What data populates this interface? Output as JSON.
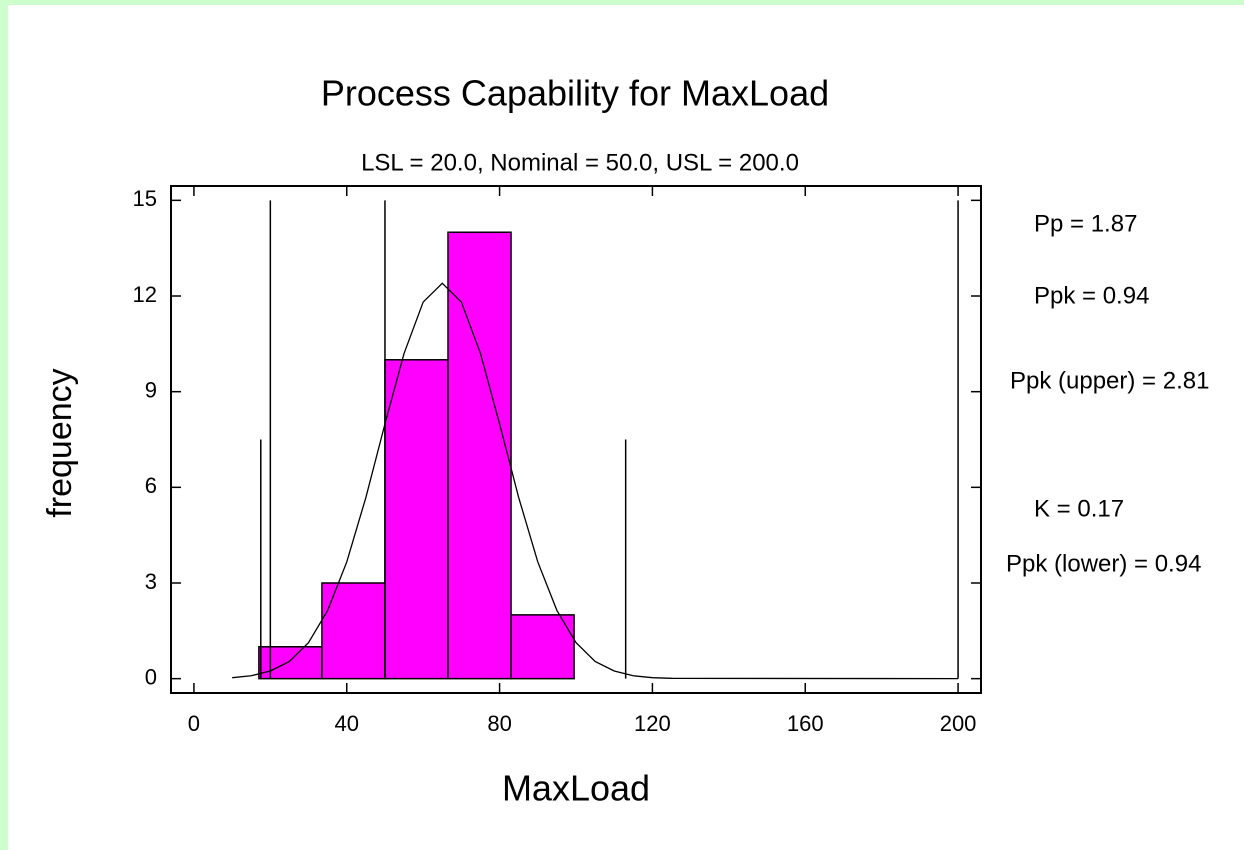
{
  "chart_data": {
    "type": "histogram",
    "title": "Process Capability for MaxLoad",
    "subtitle": "LSL = 20.0, Nominal = 50.0, USL = 200.0",
    "x_label": "MaxLoad",
    "y_label": "frequency",
    "bins": [
      17,
      33.5,
      50,
      66.5,
      83,
      99.5
    ],
    "counts": [
      1,
      3,
      10,
      14,
      2
    ],
    "color": "#ff00ff",
    "curve": {
      "x": [
        10,
        15,
        20,
        25,
        30,
        35,
        40,
        45,
        50,
        55,
        60,
        65,
        70,
        75,
        80,
        85,
        90,
        95,
        100,
        105,
        110,
        115,
        120,
        125,
        200
      ],
      "values": [
        0.03,
        0.09,
        0.24,
        0.54,
        1.13,
        2.14,
        3.66,
        5.68,
        7.99,
        10.2,
        11.81,
        12.4,
        11.81,
        10.2,
        7.99,
        5.68,
        3.66,
        2.14,
        1.13,
        0.54,
        0.24,
        0.09,
        0.03,
        0.01,
        0
      ]
    },
    "reference_lines": [
      {
        "x": 20,
        "height": 15
      },
      {
        "x": 50,
        "height": 15
      },
      {
        "x": 200,
        "height": 15
      },
      {
        "x": 17.5,
        "height": 7.5
      },
      {
        "x": 113,
        "height": 7.5
      }
    ],
    "xlim": [
      -6,
      206
    ],
    "ylim": [
      -0.45,
      15.45
    ],
    "xticks": [
      0,
      40,
      80,
      120,
      160,
      200
    ],
    "yticks": [
      0,
      3,
      6,
      9,
      12,
      15
    ],
    "stats": [
      "Pp = 1.87",
      "Ppk = 0.94",
      "Ppk (upper) = 2.81",
      "K = 0.17",
      "Ppk (lower) = 0.94"
    ]
  }
}
